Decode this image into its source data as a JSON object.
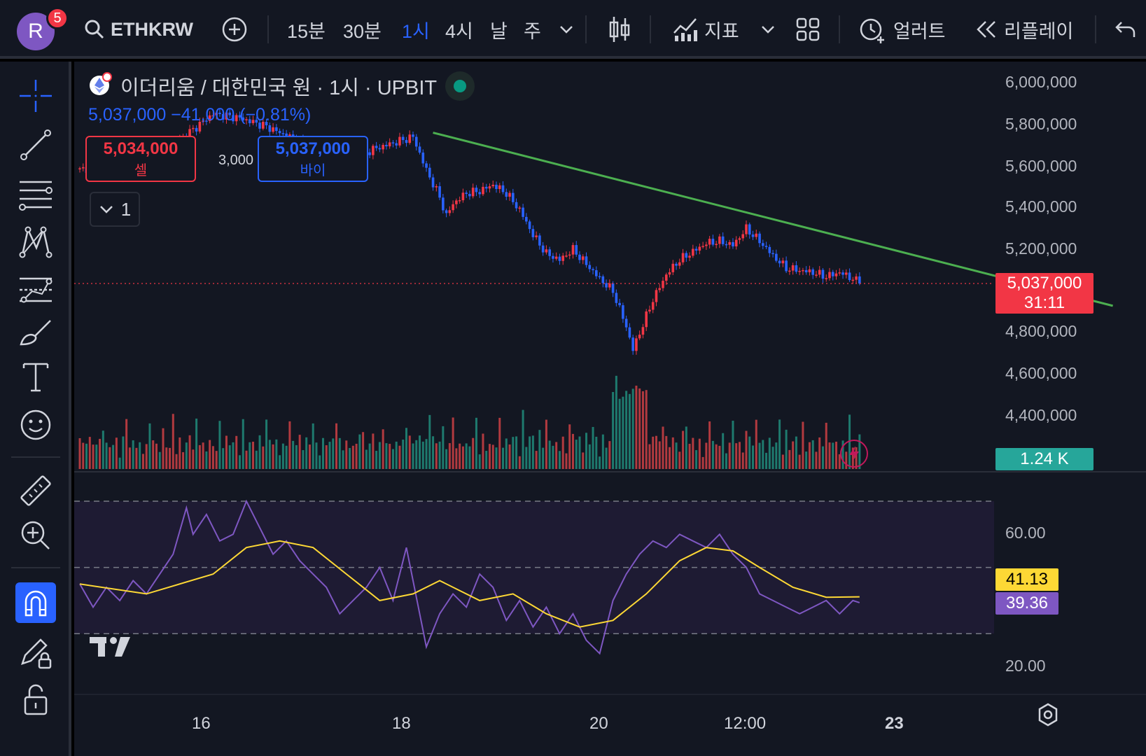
{
  "toolbar": {
    "avatar_letter": "R",
    "notification_count": "5",
    "symbol": "ETHKRW",
    "intervals": [
      "15분",
      "30분",
      "1시",
      "4시",
      "날",
      "주"
    ],
    "active_interval_index": 2,
    "indicators_label": "지표",
    "alert_label": "얼러트",
    "replay_label": "리플레이"
  },
  "legend": {
    "title": "이더리움 / 대한민국 원 · 1시 · UPBIT",
    "price_change": "5,037,000  −41,000 (−0.81%)",
    "sell_price": "5,034,000",
    "sell_label": "셀",
    "spread": "3,000",
    "buy_price": "5,037,000",
    "buy_label": "바이",
    "collapse_count": "1"
  },
  "price_axis": {
    "labels": [
      "6,000,000",
      "5,800,000",
      "5,600,000",
      "5,400,000",
      "5,200,000",
      "4,800,000",
      "4,600,000",
      "4,400,000",
      "000"
    ],
    "current_price": "5,037,000",
    "countdown": "31:11",
    "volume_tag": "1.24 K"
  },
  "rsi_axis": {
    "labels": [
      "60.00",
      "20.00"
    ],
    "ma_value": "41.13",
    "rsi_value": "39.36"
  },
  "time_axis": {
    "labels": [
      "16",
      "18",
      "20",
      "12:00",
      "23"
    ]
  },
  "colors": {
    "up": "#f23645",
    "down": "#2962ff",
    "trendline": "#4caf50",
    "rsi": "#7e57c2",
    "rsi_ma": "#fdd835",
    "volume_up": "#b23a3f",
    "volume_down": "#1e7a6e"
  },
  "chart_data": {
    "type": "candlestick",
    "symbol": "ETHKRW",
    "interval": "1시",
    "exchange": "UPBIT",
    "price_path": [
      [
        0,
        5580000
      ],
      [
        4,
        5600000
      ],
      [
        8,
        5570000
      ],
      [
        12,
        5560000
      ],
      [
        16,
        5580000
      ],
      [
        20,
        5590000
      ],
      [
        24,
        5620000
      ],
      [
        28,
        5700000
      ],
      [
        32,
        5750000
      ],
      [
        36,
        5800000
      ],
      [
        40,
        5850000
      ],
      [
        44,
        5840000
      ],
      [
        48,
        5830000
      ],
      [
        52,
        5810000
      ],
      [
        56,
        5790000
      ],
      [
        60,
        5760000
      ],
      [
        64,
        5730000
      ],
      [
        68,
        5700000
      ],
      [
        72,
        5660000
      ],
      [
        76,
        5640000
      ],
      [
        80,
        5620000
      ],
      [
        84,
        5650000
      ],
      [
        88,
        5680000
      ],
      [
        92,
        5700000
      ],
      [
        96,
        5720000
      ],
      [
        100,
        5740000
      ],
      [
        104,
        5580000
      ],
      [
        108,
        5450000
      ],
      [
        110,
        5360000
      ],
      [
        112,
        5420000
      ],
      [
        116,
        5470000
      ],
      [
        120,
        5480000
      ],
      [
        124,
        5510000
      ],
      [
        128,
        5470000
      ],
      [
        132,
        5390000
      ],
      [
        136,
        5270000
      ],
      [
        140,
        5180000
      ],
      [
        144,
        5150000
      ],
      [
        148,
        5200000
      ],
      [
        152,
        5130000
      ],
      [
        156,
        5060000
      ],
      [
        160,
        5000000
      ],
      [
        164,
        4830000
      ],
      [
        166,
        4720000
      ],
      [
        168,
        4800000
      ],
      [
        172,
        4960000
      ],
      [
        176,
        5080000
      ],
      [
        180,
        5150000
      ],
      [
        184,
        5190000
      ],
      [
        188,
        5230000
      ],
      [
        192,
        5240000
      ],
      [
        196,
        5220000
      ],
      [
        200,
        5300000
      ],
      [
        204,
        5240000
      ],
      [
        208,
        5170000
      ],
      [
        212,
        5110000
      ],
      [
        216,
        5100000
      ],
      [
        220,
        5090000
      ],
      [
        224,
        5070000
      ],
      [
        228,
        5090000
      ],
      [
        232,
        5060000
      ],
      [
        234,
        5037000
      ]
    ],
    "trendline": [
      [
        106,
        5760000
      ],
      [
        310,
        4930000
      ]
    ],
    "rsi": [
      [
        0,
        45
      ],
      [
        4,
        38
      ],
      [
        8,
        44
      ],
      [
        12,
        40
      ],
      [
        16,
        46
      ],
      [
        20,
        42
      ],
      [
        24,
        48
      ],
      [
        28,
        54
      ],
      [
        32,
        68
      ],
      [
        34,
        60
      ],
      [
        38,
        66
      ],
      [
        42,
        58
      ],
      [
        46,
        60
      ],
      [
        50,
        70
      ],
      [
        54,
        62
      ],
      [
        58,
        54
      ],
      [
        62,
        58
      ],
      [
        66,
        52
      ],
      [
        70,
        48
      ],
      [
        74,
        44
      ],
      [
        78,
        36
      ],
      [
        82,
        40
      ],
      [
        86,
        44
      ],
      [
        90,
        50
      ],
      [
        94,
        40
      ],
      [
        98,
        56
      ],
      [
        100,
        46
      ],
      [
        104,
        26
      ],
      [
        108,
        36
      ],
      [
        112,
        42
      ],
      [
        116,
        38
      ],
      [
        120,
        48
      ],
      [
        124,
        44
      ],
      [
        128,
        34
      ],
      [
        132,
        40
      ],
      [
        136,
        32
      ],
      [
        140,
        38
      ],
      [
        144,
        30
      ],
      [
        148,
        36
      ],
      [
        152,
        28
      ],
      [
        156,
        24
      ],
      [
        160,
        40
      ],
      [
        164,
        48
      ],
      [
        168,
        54
      ],
      [
        172,
        58
      ],
      [
        176,
        56
      ],
      [
        180,
        60
      ],
      [
        184,
        58
      ],
      [
        188,
        56
      ],
      [
        192,
        60
      ],
      [
        196,
        54
      ],
      [
        200,
        50
      ],
      [
        204,
        42
      ],
      [
        208,
        40
      ],
      [
        212,
        38
      ],
      [
        216,
        36
      ],
      [
        220,
        38
      ],
      [
        224,
        40
      ],
      [
        228,
        36
      ],
      [
        232,
        40
      ],
      [
        234,
        39.36
      ]
    ],
    "rsi_ma": [
      [
        0,
        45
      ],
      [
        20,
        42
      ],
      [
        40,
        48
      ],
      [
        50,
        56
      ],
      [
        60,
        58
      ],
      [
        70,
        56
      ],
      [
        80,
        48
      ],
      [
        90,
        40
      ],
      [
        100,
        42
      ],
      [
        108,
        46
      ],
      [
        120,
        40
      ],
      [
        130,
        42
      ],
      [
        140,
        36
      ],
      [
        150,
        32
      ],
      [
        160,
        34
      ],
      [
        170,
        42
      ],
      [
        180,
        52
      ],
      [
        188,
        56
      ],
      [
        196,
        55
      ],
      [
        204,
        50
      ],
      [
        214,
        44
      ],
      [
        224,
        41
      ],
      [
        234,
        41.13
      ]
    ],
    "rsi_levels": [
      70,
      50,
      30
    ]
  }
}
